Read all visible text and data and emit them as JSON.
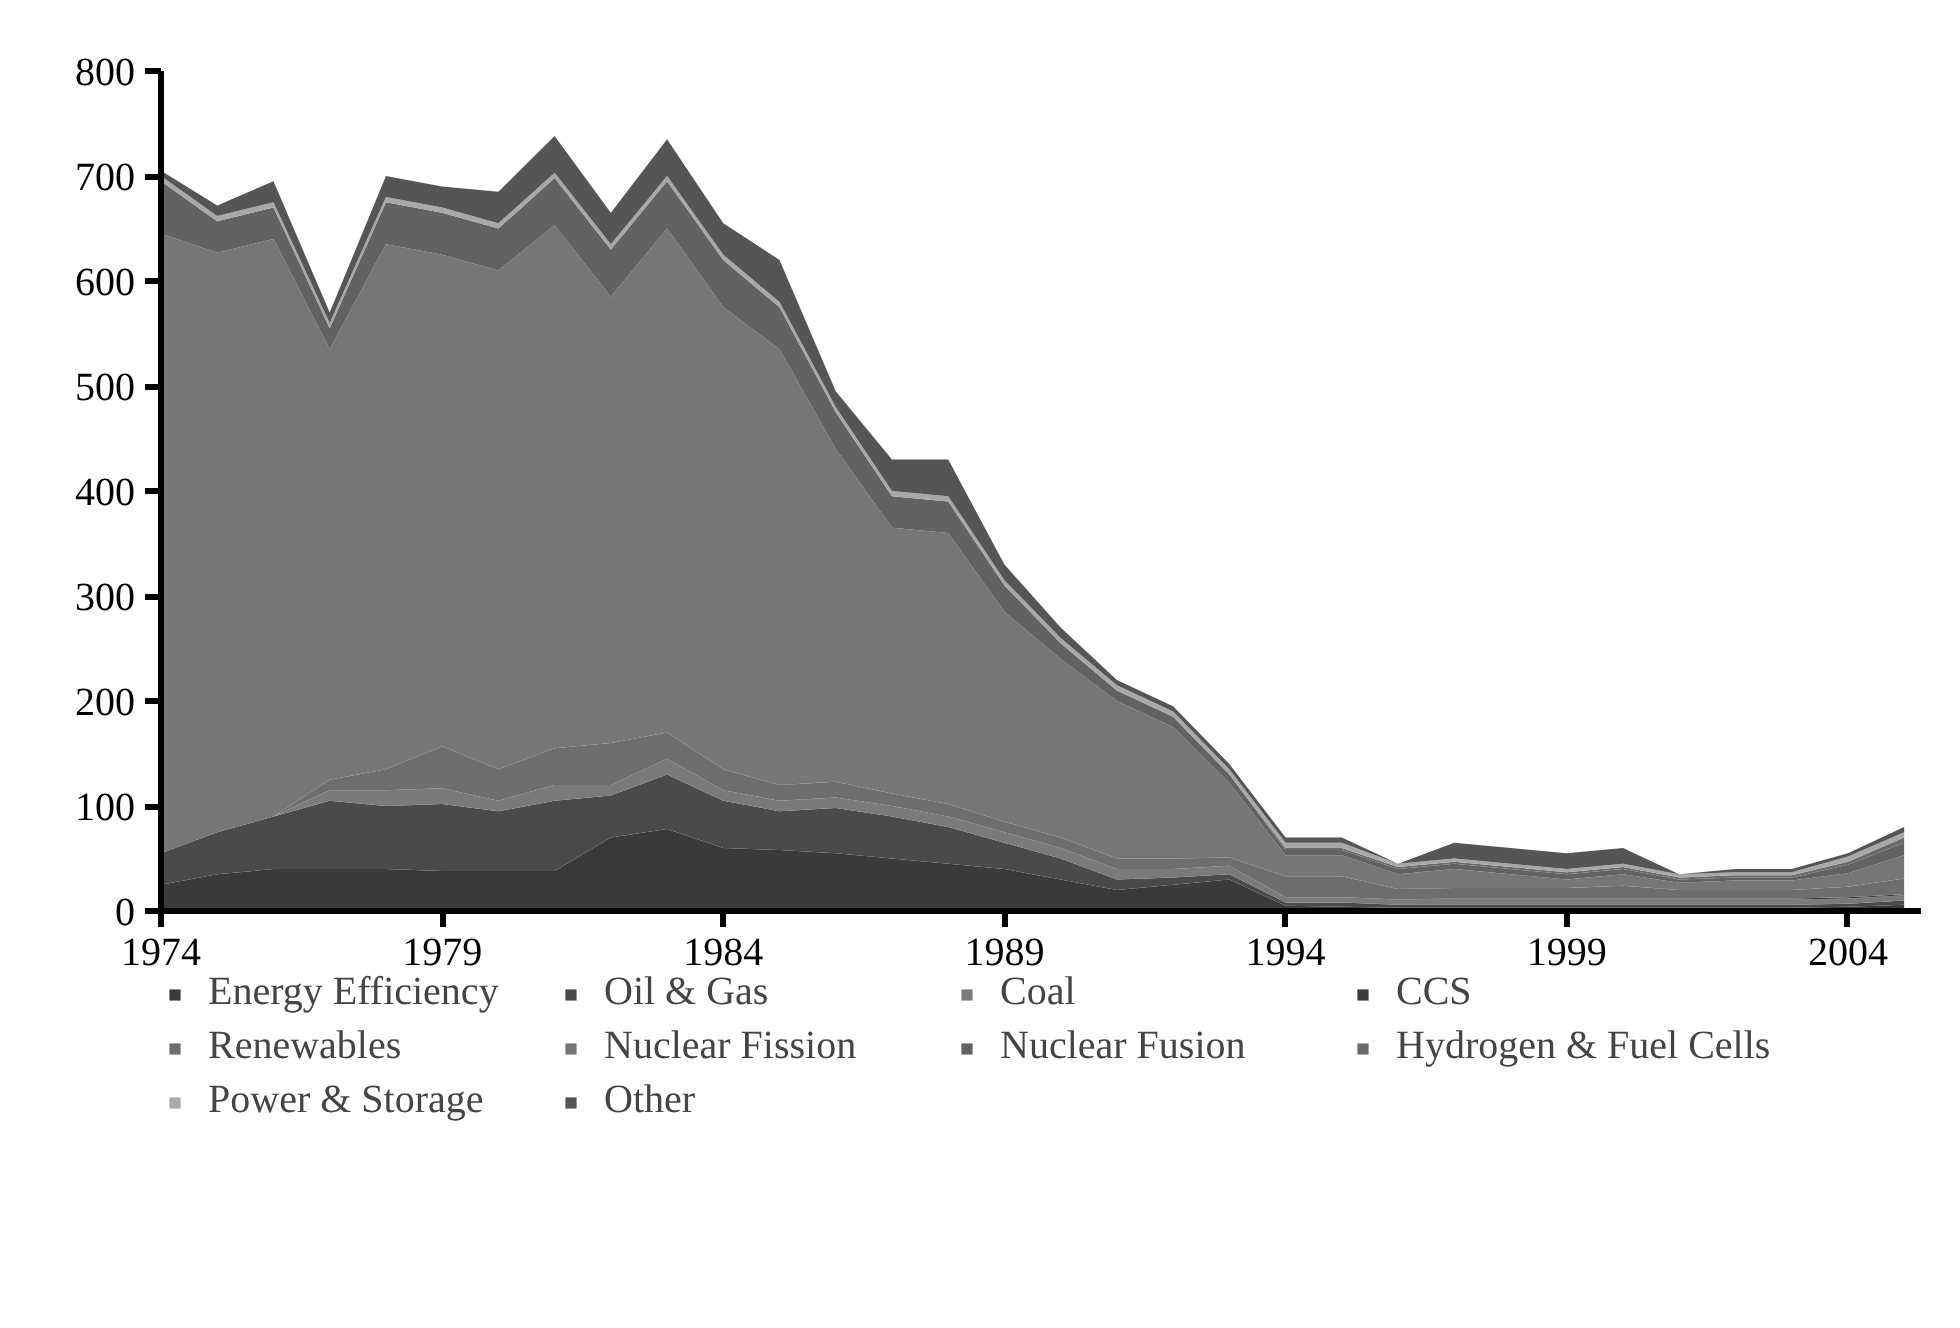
{
  "chart_data": {
    "type": "area",
    "stacked": true,
    "legend": "bottom",
    "grid": false,
    "x": [
      1974,
      1975,
      1976,
      1977,
      1978,
      1979,
      1980,
      1981,
      1982,
      1983,
      1984,
      1985,
      1986,
      1987,
      1988,
      1989,
      1990,
      1991,
      1992,
      1993,
      1994,
      1995,
      1996,
      1997,
      1998,
      1999,
      2000,
      2001,
      2002,
      2003,
      2004,
      2005
    ],
    "xlim": [
      1974,
      2005.3
    ],
    "xticks": [
      1974,
      1979,
      1984,
      1989,
      1994,
      1999,
      2004
    ],
    "ylim": [
      0,
      800
    ],
    "yticks": [
      0,
      100,
      200,
      300,
      400,
      500,
      600,
      700,
      800
    ],
    "series": [
      {
        "name": "Energy Efficiency",
        "color": "#3a3a3a",
        "values": [
          25,
          35,
          40,
          40,
          40,
          38,
          38,
          38,
          70,
          78,
          60,
          58,
          55,
          50,
          45,
          40,
          30,
          20,
          25,
          30,
          5,
          4,
          3,
          3,
          3,
          3,
          3,
          3,
          3,
          3,
          4,
          6
        ]
      },
      {
        "name": "Oil & Gas",
        "color": "#4a4a4a",
        "values": [
          30,
          40,
          50,
          65,
          60,
          64,
          57,
          67,
          40,
          52,
          45,
          37,
          43,
          40,
          35,
          25,
          20,
          10,
          7,
          5,
          3,
          4,
          3,
          3,
          3,
          3,
          3,
          3,
          3,
          3,
          3,
          4
        ]
      },
      {
        "name": "Coal",
        "color": "#7a7a7a",
        "values": [
          0,
          0,
          0,
          10,
          15,
          15,
          10,
          15,
          10,
          15,
          10,
          10,
          10,
          10,
          10,
          10,
          10,
          10,
          8,
          8,
          5,
          5,
          5,
          5,
          5,
          5,
          5,
          5,
          5,
          5,
          5,
          5
        ]
      },
      {
        "name": "CCS",
        "color": "#3c3c3c",
        "values": [
          0,
          0,
          0,
          0,
          0,
          0,
          0,
          0,
          0,
          0,
          0,
          0,
          0,
          0,
          0,
          0,
          0,
          0,
          0,
          0,
          0,
          0,
          0,
          1,
          1,
          1,
          1,
          1,
          1,
          1,
          1,
          1
        ]
      },
      {
        "name": "Renewables",
        "color": "#6e6e6e",
        "values": [
          0,
          0,
          0,
          10,
          20,
          40,
          30,
          35,
          40,
          25,
          20,
          15,
          15,
          12,
          12,
          10,
          10,
          10,
          10,
          8,
          20,
          20,
          10,
          10,
          10,
          10,
          12,
          8,
          8,
          8,
          10,
          15
        ]
      },
      {
        "name": "Nuclear Fission",
        "color": "#767676",
        "values": [
          590,
          552,
          550,
          410,
          500,
          468,
          475,
          498,
          425,
          480,
          440,
          415,
          317,
          253,
          258,
          200,
          170,
          150,
          125,
          71,
          20,
          20,
          14,
          18,
          13,
          8,
          11,
          7,
          9,
          9,
          13,
          22
        ]
      },
      {
        "name": "Nuclear Fusion",
        "color": "#626262",
        "values": [
          50,
          30,
          30,
          20,
          40,
          40,
          40,
          45,
          45,
          45,
          45,
          40,
          35,
          30,
          30,
          25,
          15,
          10,
          10,
          8,
          5,
          5,
          5,
          5,
          5,
          5,
          5,
          3,
          3,
          3,
          8,
          12
        ]
      },
      {
        "name": "Hydrogen & Fuel Cells",
        "color": "#6a6a6a",
        "values": [
          0,
          0,
          0,
          0,
          0,
          0,
          0,
          0,
          0,
          0,
          0,
          0,
          0,
          0,
          0,
          0,
          0,
          0,
          0,
          0,
          2,
          2,
          2,
          2,
          2,
          2,
          2,
          2,
          2,
          2,
          3,
          5
        ]
      },
      {
        "name": "Power & Storage",
        "color": "#a8a8a8",
        "values": [
          5,
          5,
          5,
          5,
          5,
          5,
          5,
          5,
          5,
          5,
          5,
          5,
          5,
          5,
          5,
          5,
          5,
          5,
          5,
          5,
          5,
          5,
          3,
          3,
          3,
          3,
          3,
          3,
          3,
          3,
          5,
          5
        ]
      },
      {
        "name": "Other",
        "color": "#555555",
        "values": [
          5,
          10,
          20,
          10,
          20,
          20,
          30,
          35,
          30,
          35,
          30,
          40,
          15,
          30,
          35,
          15,
          10,
          5,
          5,
          5,
          5,
          5,
          0,
          15,
          15,
          15,
          15,
          0,
          3,
          3,
          3,
          5
        ]
      }
    ]
  }
}
